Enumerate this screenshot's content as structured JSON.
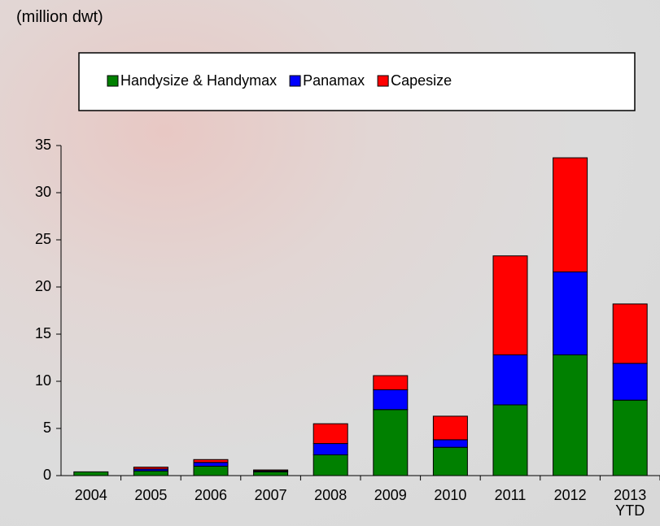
{
  "chart_data": {
    "type": "stacked_bar",
    "y_label": "(million dwt)",
    "categories": [
      "2004",
      "2005",
      "2006",
      "2007",
      "2008",
      "2009",
      "2010",
      "2011",
      "2012",
      "2013 YTD"
    ],
    "series": [
      {
        "name": "Handysize & Handymax",
        "color": "#008000",
        "values": [
          0.4,
          0.5,
          1.0,
          0.4,
          2.2,
          7.0,
          3.0,
          7.5,
          12.8,
          8.0
        ]
      },
      {
        "name": "Panamax",
        "color": "#0000ff",
        "values": [
          0,
          0.2,
          0.4,
          0.1,
          1.2,
          2.1,
          0.8,
          5.3,
          8.8,
          3.9
        ]
      },
      {
        "name": "Capesize",
        "color": "#ff0000",
        "values": [
          0,
          0.2,
          0.3,
          0.1,
          2.1,
          1.5,
          2.5,
          10.5,
          12.1,
          6.3
        ]
      }
    ],
    "ylim": [
      0,
      35
    ],
    "yticks": [
      0,
      5,
      10,
      15,
      20,
      25,
      30,
      35
    ],
    "legend": "top"
  }
}
